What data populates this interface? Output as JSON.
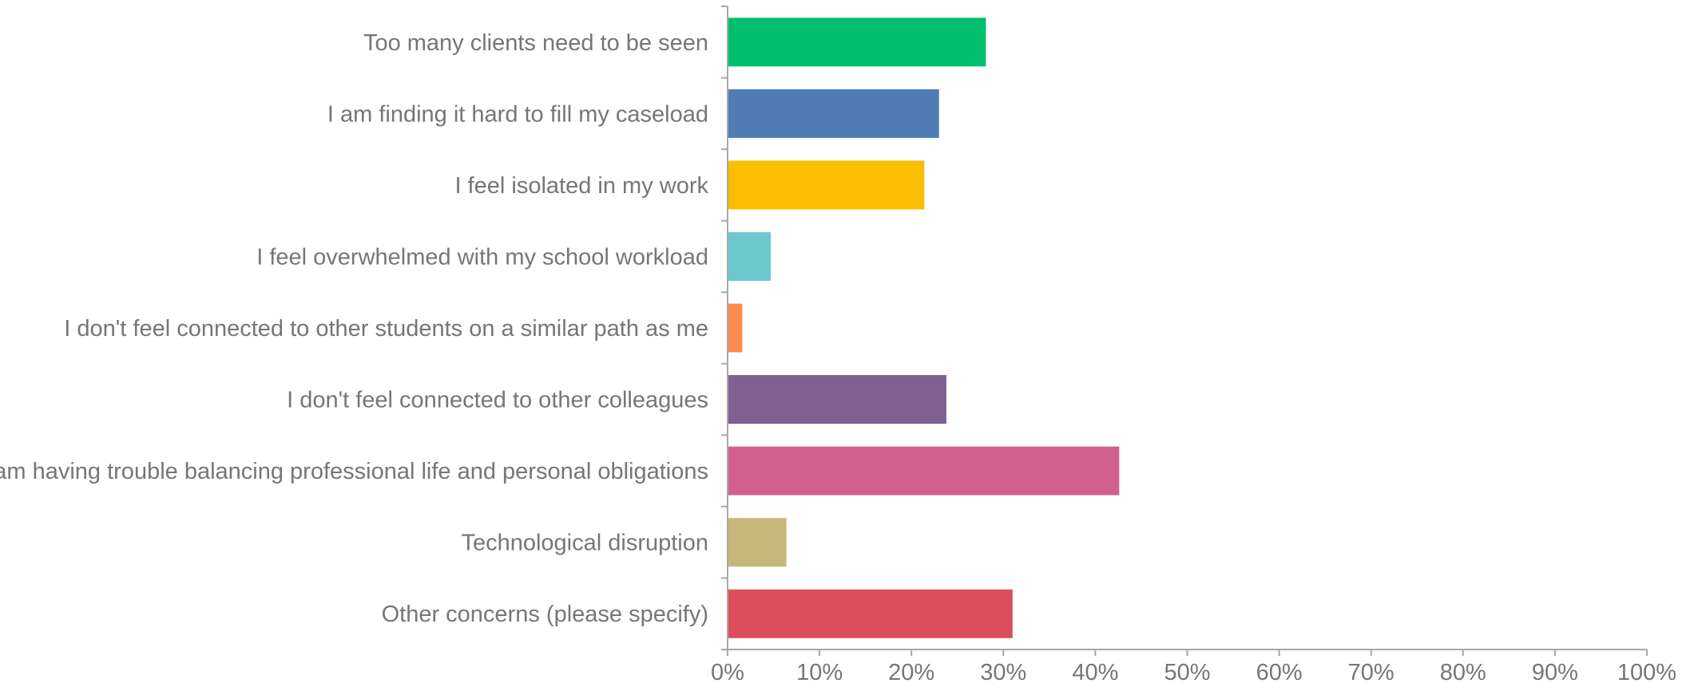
{
  "chart_data": {
    "type": "bar",
    "orientation": "horizontal",
    "categories": [
      "Too many clients need to be seen",
      "I am finding it hard to fill my caseload",
      "I feel isolated in my work",
      "I feel overwhelmed with my school workload",
      "I don't feel connected to other students on a similar path as me",
      "I don't feel connected to other colleagues",
      "I am having trouble balancing professional life and personal obligations",
      "Technological disruption",
      "Other concerns (please specify)"
    ],
    "values": [
      28.1,
      23.0,
      21.4,
      4.7,
      1.6,
      23.8,
      42.6,
      6.4,
      31.0
    ],
    "colors": [
      "#00bf6f",
      "#507cb6",
      "#f9be00",
      "#6bc8cd",
      "#ff8b4f",
      "#7f6091",
      "#d25f90",
      "#c7b879",
      "#dc4d5b"
    ],
    "xlim": [
      0,
      100
    ],
    "x_ticks": [
      0,
      10,
      20,
      30,
      40,
      50,
      60,
      70,
      80,
      90,
      100
    ],
    "x_tick_labels": [
      "0%",
      "10%",
      "20%",
      "30%",
      "40%",
      "50%",
      "60%",
      "70%",
      "80%",
      "90%",
      "100%"
    ],
    "title": "",
    "xlabel": "",
    "ylabel": "",
    "grid": false,
    "legend": "none"
  }
}
